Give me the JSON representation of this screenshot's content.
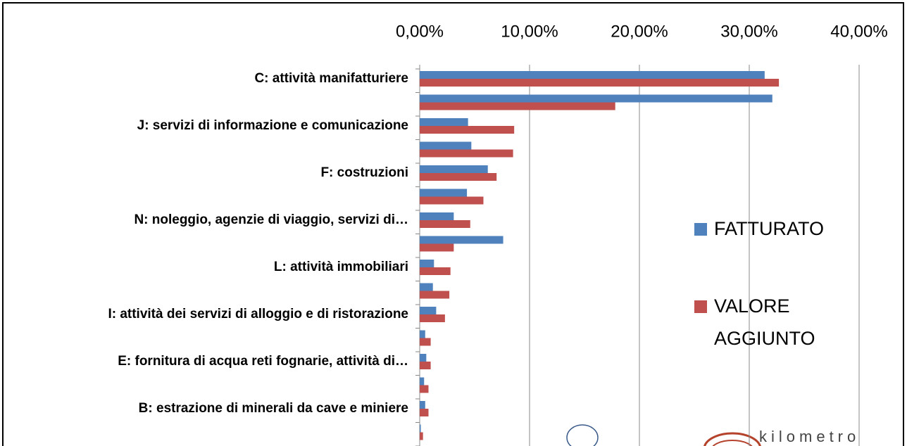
{
  "chart_data": {
    "type": "barh",
    "categories": [
      "C: attività manifatturiere",
      null,
      "J: servizi di informazione e comunicazione",
      null,
      "F: costruzioni",
      null,
      "N: noleggio, agenzie di viaggio, servizi di…",
      null,
      "L: attività immobiliari",
      null,
      "I: attività dei servizi di alloggio e di ristorazione",
      null,
      "E: fornitura di acqua reti fognarie, attività di…",
      null,
      "B: estrazione di minerali da cave e miniere",
      null
    ],
    "series": [
      {
        "name": "FATTURATO",
        "color": "#4f81bd",
        "values": [
          31.4,
          32.1,
          4.4,
          4.7,
          6.2,
          4.3,
          3.1,
          7.6,
          1.3,
          1.2,
          1.5,
          0.5,
          0.6,
          0.4,
          0.5,
          0.1
        ]
      },
      {
        "name": "VALORE AGGIUNTO",
        "color": "#c0504d",
        "values": [
          32.7,
          17.8,
          8.6,
          8.5,
          7.0,
          5.8,
          4.6,
          3.1,
          2.8,
          2.7,
          2.3,
          1.0,
          1.0,
          0.8,
          0.8,
          0.3
        ]
      }
    ],
    "xlim": [
      0,
      40
    ],
    "xticks": [
      {
        "value": 0,
        "label": "0,00%"
      },
      {
        "value": 10,
        "label": "10,00%"
      },
      {
        "value": 20,
        "label": "20,00%"
      },
      {
        "value": 30,
        "label": "30,00%"
      },
      {
        "value": 40,
        "label": "40,00%"
      }
    ],
    "grid": true,
    "legend": "right"
  },
  "logo_text": "kilometro"
}
